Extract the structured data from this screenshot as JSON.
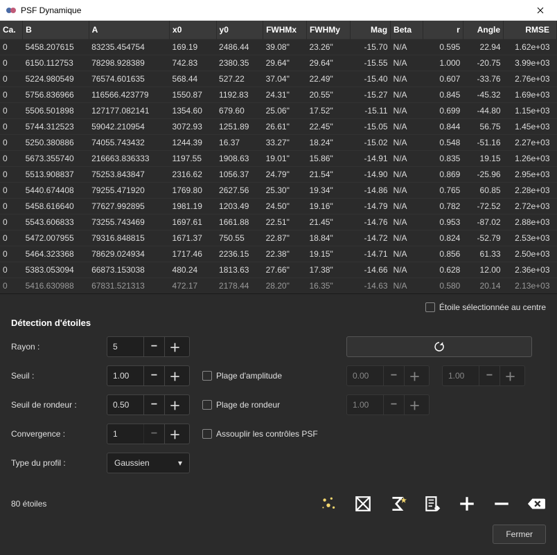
{
  "window": {
    "title": "PSF Dynamique"
  },
  "table": {
    "columns": [
      "Ca.",
      "B",
      "A",
      "x0",
      "y0",
      "FWHMx",
      "FWHMy",
      "Mag",
      "Beta",
      "r",
      "Angle",
      "RMSE"
    ],
    "rows": [
      [
        "0",
        "5458.207615",
        "83235.454754",
        "169.19",
        "2486.44",
        "39.08\"",
        "23.26\"",
        "-15.70",
        "N/A",
        "0.595",
        "22.94",
        "1.62e+03"
      ],
      [
        "0",
        "6150.112753",
        "78298.928389",
        "742.83",
        "2380.35",
        "29.64\"",
        "29.64\"",
        "-15.55",
        "N/A",
        "1.000",
        "-20.75",
        "3.99e+03"
      ],
      [
        "0",
        "5224.980549",
        "76574.601635",
        "568.44",
        "527.22",
        "37.04\"",
        "22.49\"",
        "-15.40",
        "N/A",
        "0.607",
        "-33.76",
        "2.76e+03"
      ],
      [
        "0",
        "5756.836966",
        "116566.423779",
        "1550.87",
        "1192.83",
        "24.31\"",
        "20.55\"",
        "-15.27",
        "N/A",
        "0.845",
        "-45.32",
        "1.69e+03"
      ],
      [
        "0",
        "5506.501898",
        "127177.082141",
        "1354.60",
        "679.60",
        "25.06\"",
        "17.52\"",
        "-15.11",
        "N/A",
        "0.699",
        "-44.80",
        "1.15e+03"
      ],
      [
        "0",
        "5744.312523",
        "59042.210954",
        "3072.93",
        "1251.89",
        "26.61\"",
        "22.45\"",
        "-15.05",
        "N/A",
        "0.844",
        "56.75",
        "1.45e+03"
      ],
      [
        "0",
        "5250.380886",
        "74055.743432",
        "1244.39",
        "16.37",
        "33.27\"",
        "18.24\"",
        "-15.02",
        "N/A",
        "0.548",
        "-51.16",
        "2.27e+03"
      ],
      [
        "0",
        "5673.355740",
        "216663.836333",
        "1197.55",
        "1908.63",
        "19.01\"",
        "15.86\"",
        "-14.91",
        "N/A",
        "0.835",
        "19.15",
        "1.26e+03"
      ],
      [
        "0",
        "5513.908837",
        "75253.843847",
        "2316.62",
        "1056.37",
        "24.79\"",
        "21.54\"",
        "-14.90",
        "N/A",
        "0.869",
        "-25.96",
        "2.95e+03"
      ],
      [
        "0",
        "5440.674408",
        "79255.471920",
        "1769.80",
        "2627.56",
        "25.30\"",
        "19.34\"",
        "-14.86",
        "N/A",
        "0.765",
        "60.85",
        "2.28e+03"
      ],
      [
        "0",
        "5458.616640",
        "77627.992895",
        "1981.19",
        "1203.49",
        "24.50\"",
        "19.16\"",
        "-14.79",
        "N/A",
        "0.782",
        "-72.52",
        "2.72e+03"
      ],
      [
        "0",
        "5543.606833",
        "73255.743469",
        "1697.61",
        "1661.88",
        "22.51\"",
        "21.45\"",
        "-14.76",
        "N/A",
        "0.953",
        "-87.02",
        "2.88e+03"
      ],
      [
        "0",
        "5472.007955",
        "79316.848815",
        "1671.37",
        "750.55",
        "22.87\"",
        "18.84\"",
        "-14.72",
        "N/A",
        "0.824",
        "-52.79",
        "2.53e+03"
      ],
      [
        "0",
        "5464.323368",
        "78629.024934",
        "1717.46",
        "2236.15",
        "22.38\"",
        "19.15\"",
        "-14.71",
        "N/A",
        "0.856",
        "61.33",
        "2.50e+03"
      ],
      [
        "0",
        "5383.053094",
        "66873.153038",
        "480.24",
        "1813.63",
        "27.66\"",
        "17.38\"",
        "-14.66",
        "N/A",
        "0.628",
        "12.00",
        "2.36e+03"
      ],
      [
        "0",
        "5416.630988",
        "67831.521313",
        "472.17",
        "2178.44",
        "28.20\"",
        "16.35\"",
        "-14.63",
        "N/A",
        "0.580",
        "20.14",
        "2.13e+03"
      ]
    ]
  },
  "checkbox_center": "Étoile sélectionnée au centre",
  "section": "Détection d'étoiles",
  "rows": {
    "rayon": {
      "label": "Rayon :",
      "value": "5"
    },
    "seuil": {
      "label": "Seuil :",
      "value": "1.00",
      "chk": "Plage d'amplitude",
      "v2": "0.00",
      "v3": "1.00"
    },
    "rondeur": {
      "label": "Seuil de rondeur :",
      "value": "0.50",
      "chk": "Plage de rondeur",
      "v2": "1.00"
    },
    "conv": {
      "label": "Convergence :",
      "value": "1",
      "chk": "Assouplir les contrôles PSF"
    },
    "profil": {
      "label": "Type du profil :",
      "value": "Gaussien"
    }
  },
  "star_count": "80 étoiles",
  "close_btn": "Fermer",
  "colors": {
    "bg": "#2b2b2b",
    "header": "#3a3a3a",
    "text": "#e0e0e0",
    "border": "#444"
  }
}
